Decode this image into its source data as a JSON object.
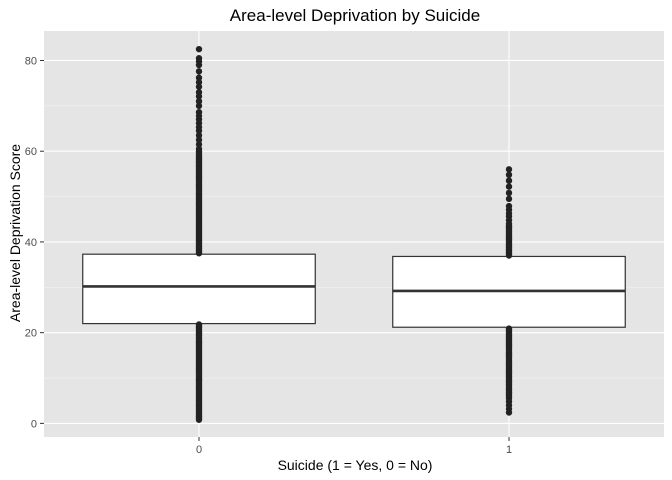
{
  "chart_data": {
    "type": "boxplot",
    "title": "Area-level Deprivation by Suicide",
    "xlabel": "Suicide (1 = Yes, 0 = No)",
    "ylabel": "Area-level Deprivation Score",
    "categories": [
      "0",
      "1"
    ],
    "ylim": [
      -3,
      86.5
    ],
    "yticks": [
      0,
      20,
      40,
      60,
      80
    ],
    "grid": true,
    "legend": "none",
    "colors": {
      "panel": "#e5e5e5",
      "grid_major": "#ffffff",
      "box_fill": "#ffffff",
      "box_line": "#333333",
      "outlier": "#222222"
    },
    "boxes": [
      {
        "category": "0",
        "q1": 22.0,
        "median": 30.2,
        "q3": 37.3,
        "whisker_low": 22.0,
        "whisker_high": 37.3,
        "outlier_range_low": [
          0.8,
          21.8
        ],
        "outlier_range_high": [
          37.5,
          60.0
        ],
        "outliers_sparse": [
          60.5,
          61.5,
          62.5,
          63.5,
          64.5,
          65.3,
          66.2,
          67.0,
          67.8,
          68.6,
          70.0,
          71.0,
          72.1,
          73.0,
          74.2,
          75.2,
          76.2,
          77.6,
          79.0,
          79.8,
          80.5,
          82.5
        ]
      },
      {
        "category": "1",
        "q1": 21.2,
        "median": 29.2,
        "q3": 36.8,
        "whisker_low": 21.2,
        "whisker_high": 36.8,
        "outlier_range_low": [
          5.5,
          21.0
        ],
        "outlier_range_high": [
          37.0,
          44.0
        ],
        "outliers_sparse": [
          2.4,
          3.2,
          4.0,
          4.8,
          44.8,
          45.6,
          46.3,
          47.1,
          47.9,
          49.5,
          50.8,
          52.2,
          53.5,
          54.8,
          56.0
        ]
      }
    ]
  }
}
